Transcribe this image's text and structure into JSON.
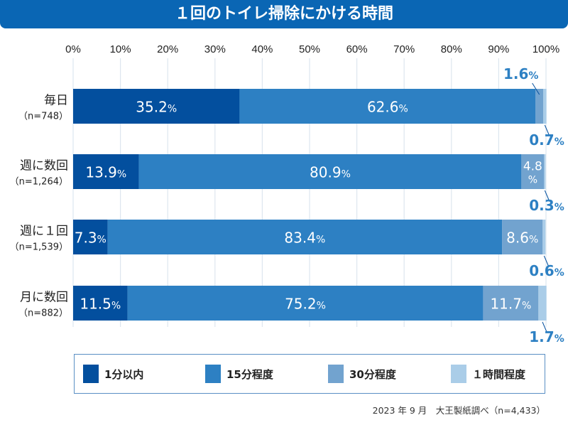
{
  "title": "１回のトイレ掃除にかける時間",
  "source_note": "2023 年 9 月　大王製紙調べ（n=4,433）",
  "chart_data": {
    "type": "bar",
    "orientation": "horizontal",
    "stacked": true,
    "title": "１回のトイレ掃除にかける時間",
    "xlabel": "",
    "ylabel": "",
    "xlim": [
      0,
      100
    ],
    "x_ticks": [
      "0%",
      "10%",
      "20%",
      "30%",
      "40%",
      "50%",
      "60%",
      "70%",
      "80%",
      "90%",
      "100%"
    ],
    "grid": true,
    "legend_position": "bottom",
    "categories": [
      {
        "label": "毎日",
        "n": "（n=748）"
      },
      {
        "label": "週に数回",
        "n": "（n=1,264）"
      },
      {
        "label": "週に１回",
        "n": "（n=1,539）"
      },
      {
        "label": "月に数回",
        "n": "（n=882）"
      }
    ],
    "series": [
      {
        "name": "1分以内",
        "color": "#034f9e",
        "values": [
          35.2,
          13.9,
          7.3,
          11.5
        ]
      },
      {
        "name": "15分程度",
        "color": "#2d80c3",
        "values": [
          62.6,
          80.9,
          83.4,
          75.2
        ]
      },
      {
        "name": "30分程度",
        "color": "#72a3cf",
        "values": [
          1.6,
          4.8,
          8.6,
          11.7
        ]
      },
      {
        "name": "1時間程度",
        "color": "#aacde8",
        "values": [
          0.7,
          0.3,
          0.6,
          1.7
        ]
      }
    ],
    "value_suffix": "%"
  },
  "legend": [
    {
      "label": "1分以内"
    },
    {
      "label": "15分程度"
    },
    {
      "label": "30分程度"
    },
    {
      "label": "１時間程度"
    }
  ]
}
